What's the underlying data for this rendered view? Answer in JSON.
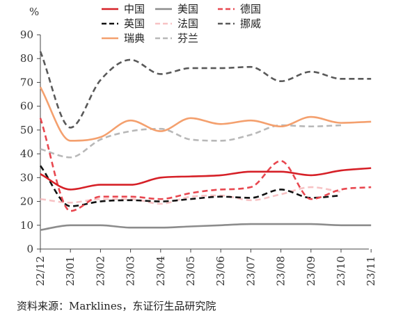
{
  "chart_data": {
    "type": "line",
    "unit": "%",
    "ylim": [
      0,
      90
    ],
    "yticks": [
      0,
      10,
      20,
      30,
      40,
      50,
      60,
      70,
      80,
      90
    ],
    "categories": [
      "22/12",
      "23/01",
      "23/02",
      "23/03",
      "23/04",
      "23/05",
      "23/06",
      "23/07",
      "23/08",
      "23/09",
      "23/10",
      "23/11"
    ],
    "grid": false,
    "legend_position": "top",
    "series": [
      {
        "name": "中国",
        "color": "#d62027",
        "dash": "solid",
        "values": [
          31.5,
          25,
          27,
          27,
          30,
          30.5,
          31,
          32.5,
          32.5,
          31,
          33,
          34
        ]
      },
      {
        "name": "美国",
        "color": "#8c8c8c",
        "dash": "solid",
        "values": [
          8,
          10,
          10,
          9,
          9,
          9.5,
          10,
          10.5,
          10.5,
          10.5,
          10,
          10
        ]
      },
      {
        "name": "德国",
        "color": "#e8474f",
        "dash": "dashed",
        "values": [
          55,
          16,
          22,
          22,
          21,
          23.5,
          25,
          26,
          37,
          21,
          25,
          26
        ]
      },
      {
        "name": "英国",
        "color": "#111111",
        "dash": "dashed",
        "values": [
          35,
          18,
          20,
          20.5,
          20,
          21,
          22,
          21.5,
          25,
          21.5,
          22.5,
          null
        ]
      },
      {
        "name": "法国",
        "color": "#f7c2c4",
        "dash": "dashed",
        "values": [
          21,
          19.5,
          21,
          21,
          19,
          22,
          22.5,
          20.5,
          23,
          26,
          24,
          null
        ]
      },
      {
        "name": "挪威",
        "color": "#595959",
        "dash": "dashed",
        "values": [
          83,
          51,
          71,
          79.5,
          73.5,
          76,
          76,
          76.5,
          70.5,
          74.5,
          71.5,
          71.5
        ]
      },
      {
        "name": "瑞典",
        "color": "#f4a06e",
        "dash": "solid",
        "values": [
          68,
          45.5,
          47,
          54,
          49.5,
          55,
          52.5,
          54,
          51.5,
          55.5,
          53,
          53.5
        ]
      },
      {
        "name": "芬兰",
        "color": "#b8b8b8",
        "dash": "dashed",
        "values": [
          42,
          38.5,
          46,
          49.5,
          50.5,
          46,
          45.5,
          48,
          52,
          51.5,
          52,
          null
        ]
      }
    ]
  },
  "source": "资料来源：Marklines，东证衍生品研究院"
}
